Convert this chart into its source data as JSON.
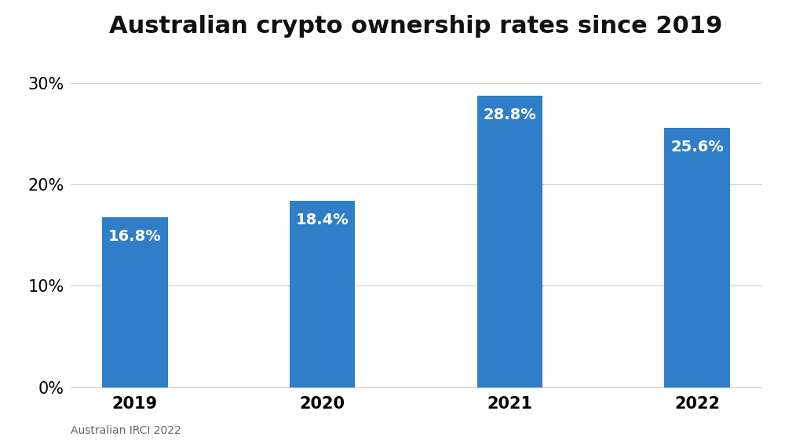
{
  "title": "Australian crypto ownership rates since 2019",
  "categories": [
    "2019",
    "2020",
    "2021",
    "2022"
  ],
  "values": [
    16.8,
    18.4,
    28.8,
    25.6
  ],
  "bar_color": "#2F7EC7",
  "label_color": "#ffffff",
  "label_fontsize": 14,
  "title_fontsize": 22,
  "tick_fontsize": 15,
  "yticks": [
    0,
    10,
    20,
    30
  ],
  "ylim": [
    0,
    33
  ],
  "background_color": "#ffffff",
  "grid_color": "#cccccc",
  "footnote": "Australian IRCI 2022",
  "footnote_fontsize": 10,
  "footnote_color": "#666666",
  "bar_width": 0.35
}
